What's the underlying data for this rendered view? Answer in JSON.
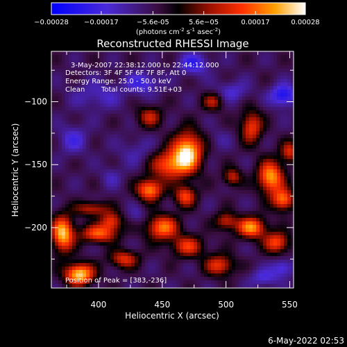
{
  "chart_data": {
    "type": "heatmap",
    "title": "Reconstructed RHESSI Image",
    "xlabel": "Heliocentric X (arcsec)",
    "ylabel": "Heliocentric Y (arcsec)",
    "xlim": [
      363,
      553
    ],
    "ylim": [
      -248,
      -60
    ],
    "x_ticks": [
      400,
      450,
      500,
      550
    ],
    "y_ticks": [
      -100,
      -150,
      -200
    ],
    "colorbar": {
      "range": [
        -0.00028,
        0.00028
      ],
      "tick_values": [
        -0.00028,
        -0.00017,
        -5.6e-05,
        5.6e-05,
        0.00017,
        0.00028
      ],
      "tick_labels": [
        "-0.00028",
        "-0.00017",
        "-5.6e-05",
        "5.6e-05",
        "0.00017",
        "0.00028"
      ],
      "unit_label": "(photons cm",
      "unit_exp1": "-2",
      "unit_mid": " s",
      "unit_exp2": "-1",
      "unit_end": " asec",
      "unit_exp3": "-2",
      "unit_close": ")"
    },
    "peak": {
      "x": 383,
      "y": -236
    },
    "blobs": [
      {
        "x": 470,
        "y": -140,
        "value": 0.00028,
        "sx": 8,
        "sy": 11
      },
      {
        "x": 455,
        "y": -150,
        "value": 0.00018,
        "sx": 10,
        "sy": 8
      },
      {
        "x": 440,
        "y": -170,
        "value": 0.00022,
        "sx": 7,
        "sy": 6
      },
      {
        "x": 468,
        "y": -175,
        "value": 0.00016,
        "sx": 6,
        "sy": 6
      },
      {
        "x": 450,
        "y": -200,
        "value": 0.0002,
        "sx": 9,
        "sy": 7
      },
      {
        "x": 470,
        "y": -215,
        "value": 0.00014,
        "sx": 9,
        "sy": 6
      },
      {
        "x": 385,
        "y": -237,
        "value": 0.00028,
        "sx": 8,
        "sy": 6
      },
      {
        "x": 372,
        "y": -205,
        "value": 0.00026,
        "sx": 6,
        "sy": 10
      },
      {
        "x": 400,
        "y": -205,
        "value": 0.00018,
        "sx": 10,
        "sy": 5
      },
      {
        "x": 410,
        "y": -195,
        "value": 0.00015,
        "sx": 6,
        "sy": 5
      },
      {
        "x": 420,
        "y": -225,
        "value": 0.00014,
        "sx": 8,
        "sy": 5
      },
      {
        "x": 395,
        "y": -185,
        "value": 0.00012,
        "sx": 9,
        "sy": 4
      },
      {
        "x": 520,
        "y": -120,
        "value": 0.00016,
        "sx": 6,
        "sy": 9
      },
      {
        "x": 535,
        "y": -160,
        "value": 0.00024,
        "sx": 7,
        "sy": 9
      },
      {
        "x": 545,
        "y": -178,
        "value": 0.0002,
        "sx": 6,
        "sy": 6
      },
      {
        "x": 505,
        "y": -160,
        "value": 0.00012,
        "sx": 5,
        "sy": 5
      },
      {
        "x": 520,
        "y": -200,
        "value": 0.00022,
        "sx": 8,
        "sy": 6
      },
      {
        "x": 540,
        "y": -212,
        "value": 0.00017,
        "sx": 7,
        "sy": 6
      },
      {
        "x": 495,
        "y": -230,
        "value": 0.00015,
        "sx": 8,
        "sy": 6
      },
      {
        "x": 440,
        "y": -112,
        "value": 0.00011,
        "sx": 7,
        "sy": 6
      },
      {
        "x": 550,
        "y": -140,
        "value": 0.00013,
        "sx": 5,
        "sy": 6
      },
      {
        "x": 490,
        "y": -100,
        "value": 0.0001,
        "sx": 6,
        "sy": 5
      },
      {
        "x": 500,
        "y": -195,
        "value": 0.00012,
        "sx": 6,
        "sy": 5
      },
      {
        "x": 430,
        "y": -140,
        "value": -0.0001,
        "sx": 10,
        "sy": 8
      },
      {
        "x": 400,
        "y": -95,
        "value": -0.00012,
        "sx": 14,
        "sy": 8
      },
      {
        "x": 435,
        "y": -85,
        "value": -0.00016,
        "sx": 9,
        "sy": 6
      },
      {
        "x": 475,
        "y": -70,
        "value": -0.00018,
        "sx": 8,
        "sy": 6
      },
      {
        "x": 505,
        "y": -92,
        "value": -0.00013,
        "sx": 9,
        "sy": 6
      },
      {
        "x": 545,
        "y": -95,
        "value": -0.00022,
        "sx": 7,
        "sy": 6
      },
      {
        "x": 380,
        "y": -130,
        "value": -0.00014,
        "sx": 8,
        "sy": 8
      },
      {
        "x": 410,
        "y": -160,
        "value": -0.0001,
        "sx": 6,
        "sy": 6
      },
      {
        "x": 530,
        "y": -240,
        "value": -0.00014,
        "sx": 8,
        "sy": 5
      },
      {
        "x": 545,
        "y": -232,
        "value": -0.00016,
        "sx": 6,
        "sy": 5
      },
      {
        "x": 495,
        "y": -130,
        "value": -8e-05,
        "sx": 6,
        "sy": 6
      },
      {
        "x": 430,
        "y": -190,
        "value": -0.0001,
        "sx": 5,
        "sy": 5
      }
    ],
    "annotations": {
      "time": "3-May-2007 22:38:12.000 to 22:44:12.000",
      "detectors": "Detectors: 3F 4F 5F 6F 7F 8F, Att 0",
      "energy": "Energy Range: 25.0 - 50.0 keV",
      "method": "Clean",
      "counts": "Total counts: 9.51E+03",
      "peak_label": "Position of Peak = [383,-236]"
    }
  },
  "footer": {
    "timestamp": "6-May-2022 02:53"
  }
}
